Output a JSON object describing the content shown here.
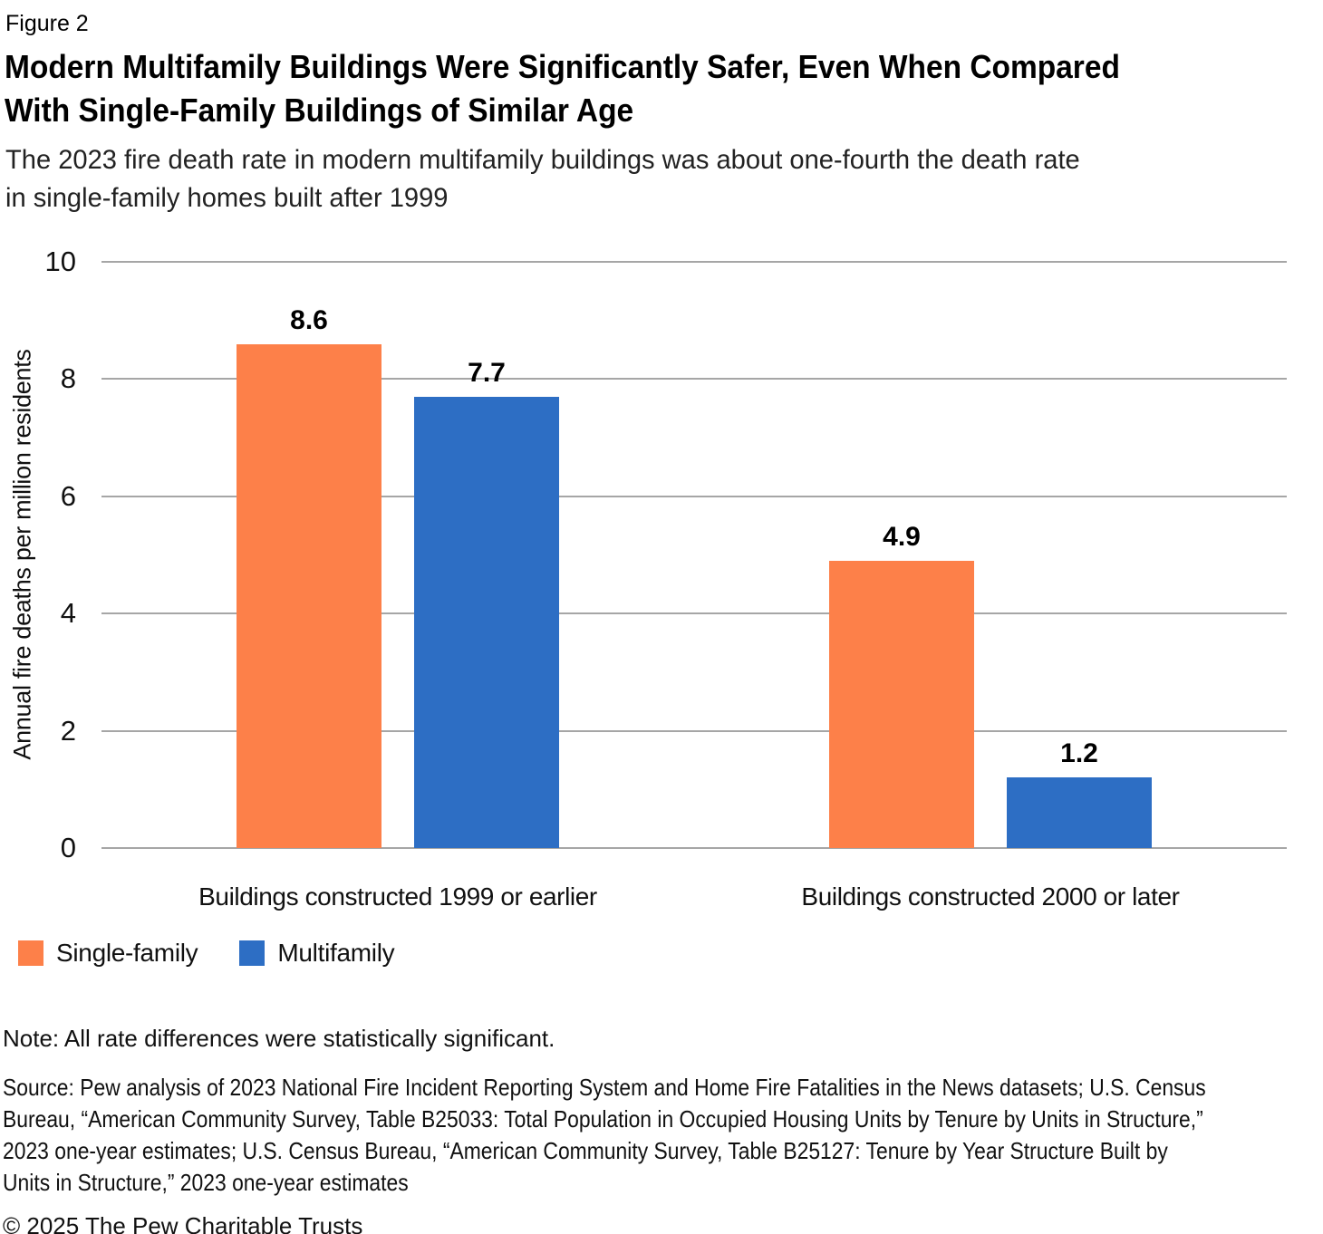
{
  "header": {
    "figure_label": "Figure 2",
    "title": "Modern Multifamily Buildings Were Significantly Safer, Even When Compared\nWith Single-Family Buildings of Similar Age",
    "subtitle": "The 2023 fire death rate in modern multifamily buildings was about one-fourth the death rate\nin single-family homes built after 1999"
  },
  "chart_data": {
    "type": "bar",
    "categories": [
      "Buildings constructed 1999 or earlier",
      "Buildings constructed 2000 or later"
    ],
    "series": [
      {
        "name": "Single-family",
        "color": "#FD8049",
        "values": [
          8.6,
          4.9
        ]
      },
      {
        "name": "Multifamily",
        "color": "#2D6EC4",
        "values": [
          7.7,
          1.2
        ]
      }
    ],
    "title": "Modern Multifamily Buildings Were Significantly Safer, Even When Compared With Single-Family Buildings of Similar Age",
    "xlabel": "",
    "ylabel": "Annual fire deaths per million residents",
    "ylim": [
      0,
      10
    ],
    "yticks": [
      0,
      2,
      4,
      6,
      8,
      10
    ],
    "grid": true,
    "legend_position": "bottom-left",
    "value_label_format": "one-decimal"
  },
  "footer": {
    "note": "Note: All rate differences were statistically significant.",
    "source": "Source: Pew analysis of 2023 National Fire Incident Reporting System and Home Fire Fatalities in the News datasets; U.S. Census\nBureau, “American Community Survey, Table B25033: Total Population in Occupied Housing Units by Tenure by Units in Structure,”\n2023 one-year estimates; U.S. Census Bureau, “American Community Survey, Table B25127: Tenure by Year Structure Built by\nUnits in Structure,” 2023 one-year estimates",
    "copyright": "© 2025 The Pew Charitable Trusts"
  },
  "colors": {
    "single_family": "#FD8049",
    "multifamily": "#2D6EC4",
    "gridline": "#A6A6A6",
    "text": "#111111",
    "title_text": "#000000",
    "background": "#FFFFFF"
  }
}
